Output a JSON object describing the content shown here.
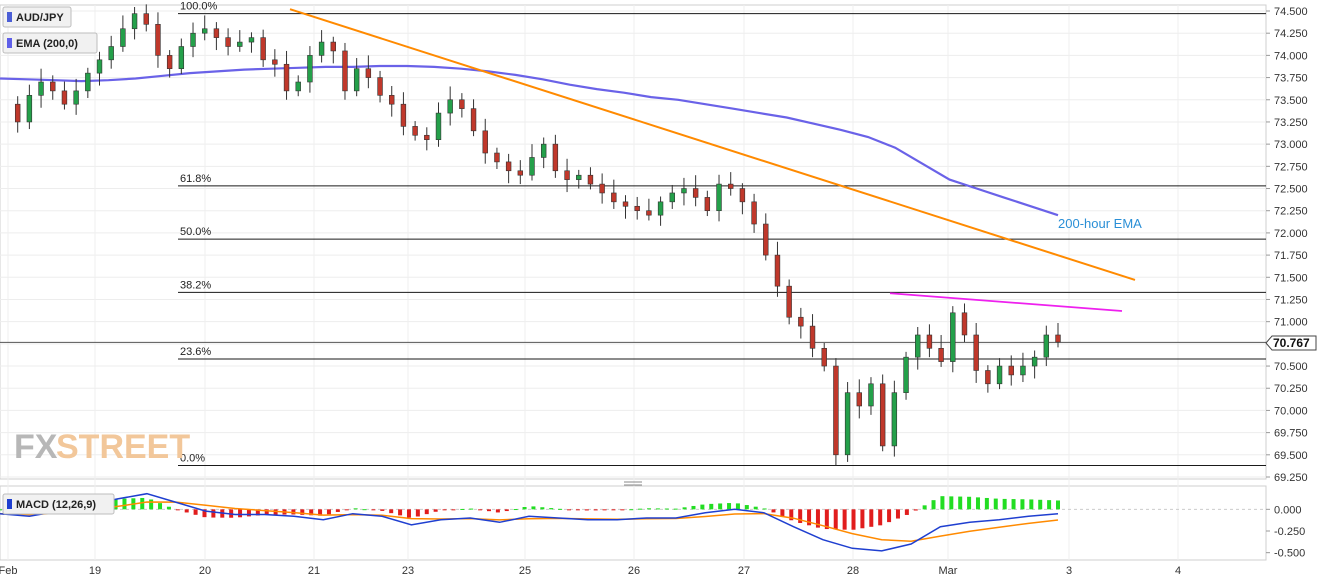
{
  "chart_data": {
    "type": "candlestick",
    "symbol": "AUD/JPY",
    "indicator_label": "EMA (200,0)",
    "macd_label": "MACD (12,26,9)",
    "ema_annotation": "200-hour EMA",
    "logo": "FXSTREET",
    "current_price": "70.767",
    "y_ticks": [
      "74.500",
      "74.250",
      "74.000",
      "73.750",
      "73.500",
      "73.250",
      "73.000",
      "72.750",
      "72.500",
      "72.250",
      "72.000",
      "71.750",
      "71.500",
      "71.250",
      "71.000",
      "70.750",
      "70.500",
      "70.250",
      "70.000",
      "69.750",
      "69.500",
      "69.250"
    ],
    "x_labels": [
      "Feb",
      "19",
      "20",
      "21",
      "23",
      "25",
      "26",
      "27",
      "28",
      "Mar",
      "3",
      "4"
    ],
    "macd_ticks": [
      "0.000",
      "-0.250",
      "-0.500"
    ],
    "fibonacci": [
      {
        "label": "100.0%",
        "value": 74.47
      },
      {
        "label": "61.8%",
        "value": 72.53
      },
      {
        "label": "50.0%",
        "value": 71.93
      },
      {
        "label": "38.2%",
        "value": 71.33
      },
      {
        "label": "23.6%",
        "value": 70.58
      },
      {
        "label": "0.0%",
        "value": 69.38
      }
    ],
    "price_path": [
      73.45,
      73.25,
      73.55,
      73.7,
      73.6,
      73.45,
      73.6,
      73.8,
      73.95,
      74.1,
      74.3,
      74.47,
      74.35,
      74.0,
      73.85,
      74.1,
      74.25,
      74.3,
      74.2,
      74.1,
      74.15,
      74.2,
      73.95,
      73.9,
      73.6,
      73.7,
      74.0,
      74.15,
      74.05,
      73.6,
      73.85,
      73.75,
      73.55,
      73.45,
      73.2,
      73.1,
      73.05,
      73.35,
      73.5,
      73.4,
      73.15,
      72.9,
      72.8,
      72.7,
      72.65,
      72.85,
      73.0,
      72.7,
      72.6,
      72.65,
      72.55,
      72.45,
      72.35,
      72.3,
      72.25,
      72.2,
      72.35,
      72.45,
      72.5,
      72.4,
      72.25,
      72.55,
      72.5,
      72.35,
      72.1,
      71.75,
      71.4,
      71.05,
      70.95,
      70.7,
      70.5,
      69.5,
      70.2,
      70.05,
      70.3,
      69.6,
      70.2,
      70.6,
      70.85,
      70.7,
      70.55,
      71.1,
      70.85,
      70.45,
      70.3,
      70.5,
      70.4,
      70.5,
      70.6,
      70.85,
      70.77
    ],
    "ema_path": [
      73.74,
      73.73,
      73.72,
      73.71,
      73.72,
      73.74,
      73.77,
      73.8,
      73.82,
      73.84,
      73.85,
      73.86,
      73.87,
      73.87,
      73.88,
      73.88,
      73.87,
      73.85,
      73.82,
      73.78,
      73.73,
      73.67,
      73.62,
      73.58,
      73.53,
      73.5,
      73.45,
      73.4,
      73.35,
      73.3,
      73.23,
      73.16,
      73.08,
      72.96,
      72.78,
      72.6,
      72.5,
      72.4,
      72.3,
      72.2
    ],
    "trendline_orange": {
      "start": 74.52,
      "end": 71.47
    },
    "trendline_magenta": {
      "start": 71.32,
      "end": 71.12
    },
    "macd_line": [
      -0.05,
      -0.08,
      -0.02,
      0.05,
      0.12,
      0.18,
      0.08,
      -0.02,
      -0.06,
      -0.06,
      -0.08,
      -0.12,
      -0.05,
      -0.08,
      -0.18,
      -0.12,
      -0.1,
      -0.15,
      -0.08,
      -0.1,
      -0.12,
      -0.12,
      -0.1,
      -0.1,
      -0.04,
      0.0,
      -0.04,
      -0.2,
      -0.35,
      -0.45,
      -0.48,
      -0.4,
      -0.2,
      -0.15,
      -0.12,
      -0.08,
      -0.05
    ]
  }
}
